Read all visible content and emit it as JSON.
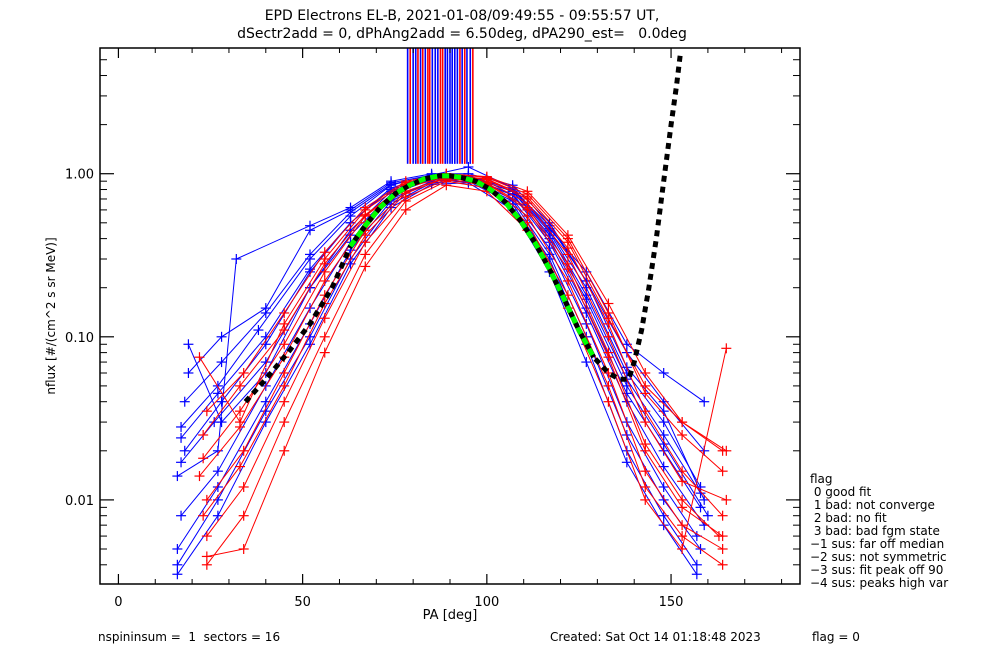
{
  "chart_data": {
    "type": "line",
    "title": "EPD Electrons EL-B, 2021-01-08/09:49:55 - 09:55:57 UT,",
    "subtitle": "dSectr2add = 0, dPhAng2add = 6.50deg, dPA290_est=   0.0deg",
    "xlabel": "PA [deg]",
    "ylabel": "nflux [#/(cm^2 s sr MeV)]",
    "xlim": [
      -5,
      185
    ],
    "ylim": [
      0.00305,
      5.9
    ],
    "yscale": "log",
    "x_ticks": [
      0,
      50,
      100,
      150
    ],
    "x_tick_labels": [
      "0",
      "50",
      "100",
      "150"
    ],
    "x_minor_step": 10,
    "y_ticks": [
      0.01,
      0.1,
      1.0
    ],
    "y_tick_labels": [
      "0.01",
      "0.10",
      "1.00"
    ],
    "grid": false,
    "series_colors": {
      "red": "#ff0000",
      "blue": "#0000ff",
      "fit": "#00ff00",
      "model": "#000000"
    },
    "series": [
      {
        "name": "blue-1",
        "color": "blue",
        "x": [
          17,
          27,
          38,
          52,
          63,
          74,
          85,
          95,
          107,
          117,
          127,
          138,
          148,
          158
        ],
        "y": [
          0.028,
          0.05,
          0.11,
          0.3,
          0.55,
          0.85,
          0.98,
          0.97,
          0.8,
          0.45,
          0.2,
          0.06,
          0.03,
          0.012
        ]
      },
      {
        "name": "blue-2",
        "color": "blue",
        "x": [
          18,
          28,
          40,
          52,
          63,
          74,
          85,
          95,
          107,
          117,
          127,
          138,
          148,
          158
        ],
        "y": [
          0.02,
          0.04,
          0.09,
          0.25,
          0.5,
          0.8,
          0.95,
          0.95,
          0.75,
          0.4,
          0.15,
          0.045,
          0.02,
          0.009
        ]
      },
      {
        "name": "blue-3",
        "color": "blue",
        "x": [
          16,
          27,
          32,
          52,
          63,
          74,
          85,
          95,
          107,
          117,
          127,
          138,
          148,
          159
        ],
        "y": [
          0.014,
          0.02,
          0.3,
          0.48,
          0.62,
          0.9,
          1.0,
          1.0,
          0.85,
          0.5,
          0.22,
          0.065,
          0.035,
          0.01
        ]
      },
      {
        "name": "blue-4",
        "color": "blue",
        "x": [
          19,
          28,
          40,
          52,
          63,
          74,
          85,
          95,
          107,
          117,
          127,
          138,
          148,
          160
        ],
        "y": [
          0.09,
          0.03,
          0.06,
          0.2,
          0.45,
          0.78,
          0.93,
          0.96,
          0.78,
          0.42,
          0.17,
          0.05,
          0.022,
          0.008
        ]
      },
      {
        "name": "blue-5",
        "color": "blue",
        "x": [
          17,
          27,
          40,
          52,
          63,
          74,
          85,
          95,
          107,
          117,
          127,
          138,
          148,
          157
        ],
        "y": [
          0.008,
          0.015,
          0.05,
          0.15,
          0.38,
          0.7,
          0.9,
          0.93,
          0.7,
          0.35,
          0.12,
          0.03,
          0.012,
          0.006
        ]
      },
      {
        "name": "blue-6",
        "color": "blue",
        "x": [
          16,
          27,
          40,
          52,
          63,
          74,
          85,
          95,
          107,
          117,
          127,
          138,
          148,
          158
        ],
        "y": [
          0.005,
          0.012,
          0.04,
          0.12,
          0.34,
          0.68,
          0.9,
          0.92,
          0.68,
          0.32,
          0.1,
          0.025,
          0.01,
          0.005
        ]
      },
      {
        "name": "blue-7",
        "color": "blue",
        "x": [
          18,
          28,
          40,
          52,
          63,
          74,
          85,
          95,
          107,
          117,
          127,
          138,
          148,
          159
        ],
        "y": [
          0.04,
          0.07,
          0.14,
          0.32,
          0.58,
          0.86,
          0.97,
          0.97,
          0.8,
          0.48,
          0.22,
          0.08,
          0.04,
          0.02
        ]
      },
      {
        "name": "blue-8",
        "color": "blue",
        "x": [
          17,
          26,
          40,
          52,
          63,
          74,
          85,
          95,
          107,
          117,
          127,
          138,
          148,
          159
        ],
        "y": [
          0.017,
          0.03,
          0.07,
          0.2,
          0.42,
          0.75,
          0.92,
          0.94,
          0.74,
          0.38,
          0.14,
          0.04,
          0.016,
          0.007
        ]
      },
      {
        "name": "blue-9",
        "color": "blue",
        "x": [
          16,
          27,
          40,
          52,
          63,
          74,
          85,
          95,
          107,
          117,
          127,
          138,
          148,
          157
        ],
        "y": [
          0.004,
          0.01,
          0.035,
          0.1,
          0.3,
          0.65,
          0.88,
          0.9,
          0.65,
          0.3,
          0.09,
          0.02,
          0.008,
          0.004
        ]
      },
      {
        "name": "blue-10",
        "color": "blue",
        "x": [
          19,
          28,
          40,
          52,
          63,
          74,
          85,
          95,
          107,
          117,
          127,
          138,
          148,
          159
        ],
        "y": [
          0.06,
          0.1,
          0.15,
          0.45,
          0.6,
          0.88,
          0.98,
          1.1,
          0.82,
          0.46,
          0.25,
          0.09,
          0.06,
          0.04
        ]
      },
      {
        "name": "blue-11",
        "color": "blue",
        "x": [
          17,
          27,
          40,
          52,
          63,
          74,
          85,
          95,
          107,
          117,
          127,
          138,
          148,
          158
        ],
        "y": [
          0.024,
          0.045,
          0.1,
          0.26,
          0.5,
          0.82,
          0.96,
          0.96,
          0.78,
          0.44,
          0.18,
          0.055,
          0.025,
          0.011
        ]
      },
      {
        "name": "blue-12",
        "color": "blue",
        "x": [
          16,
          27,
          40,
          52,
          63,
          74,
          85,
          95,
          107,
          117,
          127,
          138,
          148,
          157
        ],
        "y": [
          0.0035,
          0.008,
          0.03,
          0.09,
          0.28,
          0.62,
          0.86,
          0.88,
          0.6,
          0.25,
          0.07,
          0.017,
          0.007,
          0.0035
        ]
      },
      {
        "name": "red-1",
        "color": "red",
        "x": [
          23,
          33,
          45,
          56,
          67,
          78,
          89,
          100,
          111,
          122,
          133,
          143,
          153,
          164
        ],
        "y": [
          0.018,
          0.035,
          0.09,
          0.25,
          0.55,
          0.85,
          0.98,
          0.92,
          0.7,
          0.35,
          0.12,
          0.035,
          0.015,
          0.008
        ]
      },
      {
        "name": "red-2",
        "color": "red",
        "x": [
          24,
          34,
          45,
          56,
          67,
          78,
          89,
          100,
          111,
          122,
          133,
          143,
          153,
          163
        ],
        "y": [
          0.01,
          0.02,
          0.06,
          0.18,
          0.45,
          0.78,
          0.95,
          0.88,
          0.62,
          0.28,
          0.08,
          0.022,
          0.01,
          0.006
        ]
      },
      {
        "name": "red-3",
        "color": "red",
        "x": [
          22,
          33,
          45,
          56,
          67,
          78,
          89,
          100,
          111,
          122,
          133,
          143,
          153,
          164
        ],
        "y": [
          0.075,
          0.03,
          0.12,
          0.3,
          0.6,
          0.88,
          1.0,
          0.95,
          0.75,
          0.4,
          0.14,
          0.045,
          0.025,
          0.015
        ]
      },
      {
        "name": "red-4",
        "color": "red",
        "x": [
          24,
          34,
          45,
          56,
          67,
          78,
          89,
          100,
          111,
          122,
          133,
          143,
          153,
          164
        ],
        "y": [
          0.006,
          0.012,
          0.04,
          0.13,
          0.38,
          0.72,
          0.92,
          0.85,
          0.55,
          0.22,
          0.06,
          0.015,
          0.007,
          0.005
        ]
      },
      {
        "name": "red-5",
        "color": "red",
        "x": [
          23,
          33,
          45,
          56,
          67,
          78,
          89,
          100,
          111,
          122,
          133,
          143,
          153,
          165
        ],
        "y": [
          0.025,
          0.05,
          0.11,
          0.28,
          0.56,
          0.86,
          0.98,
          0.93,
          0.72,
          0.38,
          0.13,
          0.05,
          0.03,
          0.02
        ]
      },
      {
        "name": "red-6",
        "color": "red",
        "x": [
          24,
          34,
          45,
          56,
          67,
          78,
          89,
          100,
          111,
          122,
          133,
          143,
          153,
          164
        ],
        "y": [
          0.004,
          0.008,
          0.03,
          0.1,
          0.32,
          0.68,
          0.9,
          0.82,
          0.5,
          0.18,
          0.05,
          0.012,
          0.006,
          0.004
        ]
      },
      {
        "name": "red-7",
        "color": "red",
        "x": [
          22,
          33,
          45,
          56,
          67,
          78,
          89,
          100,
          111,
          122,
          133,
          143,
          153,
          165
        ],
        "y": [
          0.014,
          0.028,
          0.075,
          0.22,
          0.5,
          0.82,
          0.96,
          0.9,
          0.66,
          0.32,
          0.1,
          0.03,
          0.013,
          0.01
        ]
      },
      {
        "name": "red-8",
        "color": "red",
        "x": [
          24,
          34,
          45,
          56,
          67,
          78,
          89,
          100,
          111,
          122,
          133,
          143,
          153,
          165
        ],
        "y": [
          0.0045,
          0.005,
          0.02,
          0.08,
          0.27,
          0.6,
          0.85,
          0.78,
          0.45,
          0.15,
          0.04,
          0.01,
          0.005,
          0.085
        ]
      },
      {
        "name": "red-9",
        "color": "red",
        "x": [
          23,
          33,
          45,
          56,
          67,
          78,
          89,
          100,
          111,
          122,
          133,
          143,
          153,
          164
        ],
        "y": [
          0.008,
          0.016,
          0.05,
          0.16,
          0.42,
          0.76,
          0.94,
          0.87,
          0.6,
          0.26,
          0.075,
          0.02,
          0.009,
          0.006
        ]
      },
      {
        "name": "red-10",
        "color": "red",
        "x": [
          24,
          34,
          45,
          56,
          67,
          78,
          89,
          100,
          111,
          122,
          133,
          143,
          153,
          164
        ],
        "y": [
          0.035,
          0.06,
          0.14,
          0.33,
          0.62,
          0.9,
          1.0,
          0.96,
          0.78,
          0.42,
          0.16,
          0.06,
          0.03,
          0.02
        ]
      }
    ],
    "fit_curve": {
      "name": "fit (green dashed)",
      "x": [
        63,
        67,
        71,
        75,
        79,
        83,
        87,
        90,
        93,
        97,
        101,
        105,
        109,
        113,
        117,
        121,
        125,
        129
      ],
      "y": [
        0.36,
        0.48,
        0.62,
        0.75,
        0.85,
        0.93,
        0.97,
        0.97,
        0.95,
        0.9,
        0.8,
        0.67,
        0.52,
        0.38,
        0.26,
        0.17,
        0.11,
        0.075
      ]
    },
    "model_curve": {
      "name": "model (black dashed)",
      "x": [
        34.5,
        40,
        46,
        52,
        58,
        63,
        67,
        71,
        75,
        79,
        83,
        87,
        90,
        93,
        97,
        101,
        105,
        109,
        113,
        117,
        121,
        125,
        129,
        133,
        136,
        138.5,
        140,
        142,
        144,
        146,
        148,
        150,
        151.5,
        152.5
      ],
      "y": [
        0.04,
        0.055,
        0.08,
        0.12,
        0.2,
        0.36,
        0.48,
        0.62,
        0.75,
        0.85,
        0.93,
        0.97,
        0.97,
        0.95,
        0.9,
        0.8,
        0.67,
        0.52,
        0.38,
        0.26,
        0.17,
        0.11,
        0.075,
        0.06,
        0.055,
        0.055,
        0.07,
        0.11,
        0.2,
        0.4,
        0.9,
        2.0,
        3.5,
        5.4
      ]
    },
    "vertical_lines": {
      "y_from": 1.15,
      "positions": [
        {
          "pa": 78.5,
          "color": "blue"
        },
        {
          "pa": 79.2,
          "color": "red"
        },
        {
          "pa": 80.0,
          "color": "blue"
        },
        {
          "pa": 80.7,
          "color": "blue"
        },
        {
          "pa": 81.3,
          "color": "red"
        },
        {
          "pa": 82.0,
          "color": "blue"
        },
        {
          "pa": 82.6,
          "color": "red"
        },
        {
          "pa": 83.3,
          "color": "blue"
        },
        {
          "pa": 84.0,
          "color": "red"
        },
        {
          "pa": 84.5,
          "color": "red"
        },
        {
          "pa": 85.2,
          "color": "blue"
        },
        {
          "pa": 86.0,
          "color": "blue"
        },
        {
          "pa": 86.7,
          "color": "blue"
        },
        {
          "pa": 87.4,
          "color": "red"
        },
        {
          "pa": 88.0,
          "color": "red"
        },
        {
          "pa": 88.7,
          "color": "blue"
        },
        {
          "pa": 89.3,
          "color": "blue"
        },
        {
          "pa": 90.0,
          "color": "blue"
        },
        {
          "pa": 90.6,
          "color": "blue"
        },
        {
          "pa": 91.3,
          "color": "blue"
        },
        {
          "pa": 92.0,
          "color": "blue"
        },
        {
          "pa": 92.7,
          "color": "red"
        },
        {
          "pa": 93.3,
          "color": "blue"
        },
        {
          "pa": 94.0,
          "color": "red"
        },
        {
          "pa": 94.6,
          "color": "blue"
        },
        {
          "pa": 95.5,
          "color": "blue"
        },
        {
          "pa": 96.2,
          "color": "red"
        }
      ]
    }
  },
  "footer": {
    "left": "nspininsum =  1  sectors = 16",
    "created": "Created: Sat Oct 14 01:18:48 2023",
    "flag": "flag = 0"
  },
  "legend": {
    "title": "flag",
    "items": [
      " 0 good fit",
      " 1 bad: not converge",
      " 2 bad: no fit",
      " 3 bad: bad fgm state",
      "−1 sus: far off median",
      "−2 sus: not symmetric",
      "−3 sus: fit peak off 90",
      "−4 sus: peaks high var"
    ]
  }
}
